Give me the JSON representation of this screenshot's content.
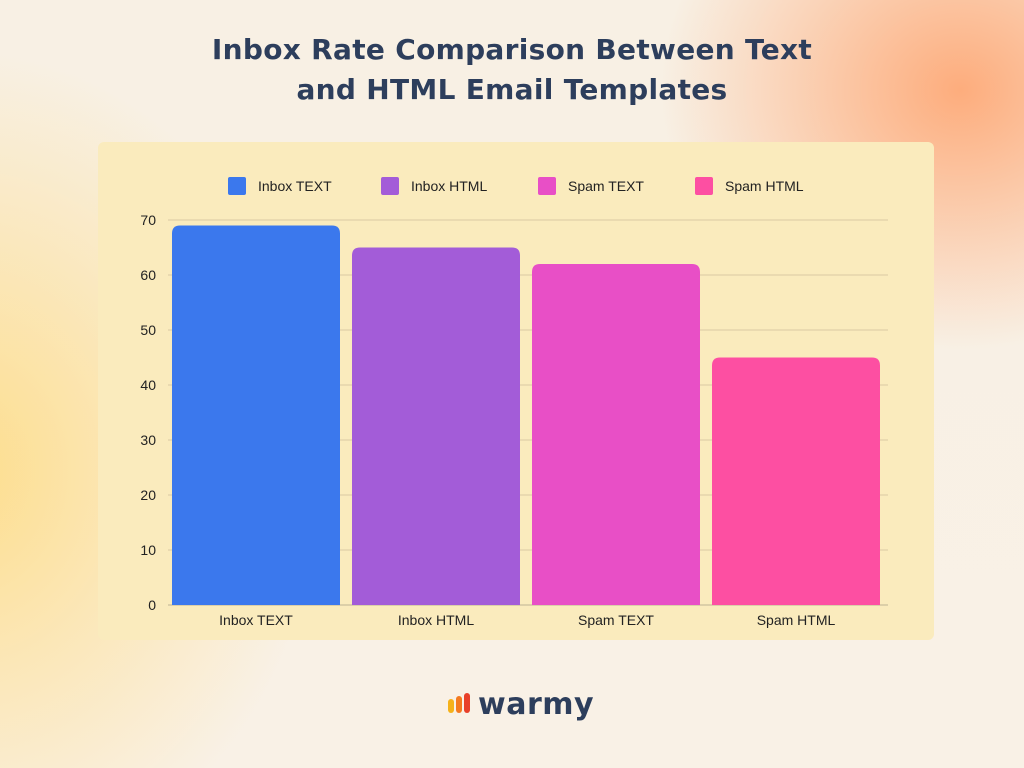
{
  "title_lines": [
    "Inbox Rate Comparison Between Text",
    "and HTML Email Templates"
  ],
  "brand": {
    "name": "warmy",
    "colors": [
      "#f5b21a",
      "#f47a1f",
      "#e8402a"
    ]
  },
  "chart_data": {
    "type": "bar",
    "title": "Inbox Rate Comparison Between Text and HTML Email Templates",
    "xlabel": "",
    "ylabel": "",
    "categories": [
      "Inbox TEXT",
      "Inbox HTML",
      "Spam TEXT",
      "Spam HTML"
    ],
    "series": [
      {
        "name": "Inbox TEXT",
        "values": [
          69,
          null,
          null,
          null
        ],
        "color": "#3b78ed"
      },
      {
        "name": "Inbox HTML",
        "values": [
          null,
          65,
          null,
          null
        ],
        "color": "#a35cd8"
      },
      {
        "name": "Spam TEXT",
        "values": [
          null,
          null,
          62,
          null
        ],
        "color": "#e84fc6"
      },
      {
        "name": "Spam HTML",
        "values": [
          null,
          null,
          null,
          45
        ],
        "color": "#fd4fa2"
      }
    ],
    "ylim": [
      0,
      70
    ],
    "yticks": [
      0,
      10,
      20,
      30,
      40,
      50,
      60,
      70
    ],
    "grid": true,
    "legend": "top"
  }
}
